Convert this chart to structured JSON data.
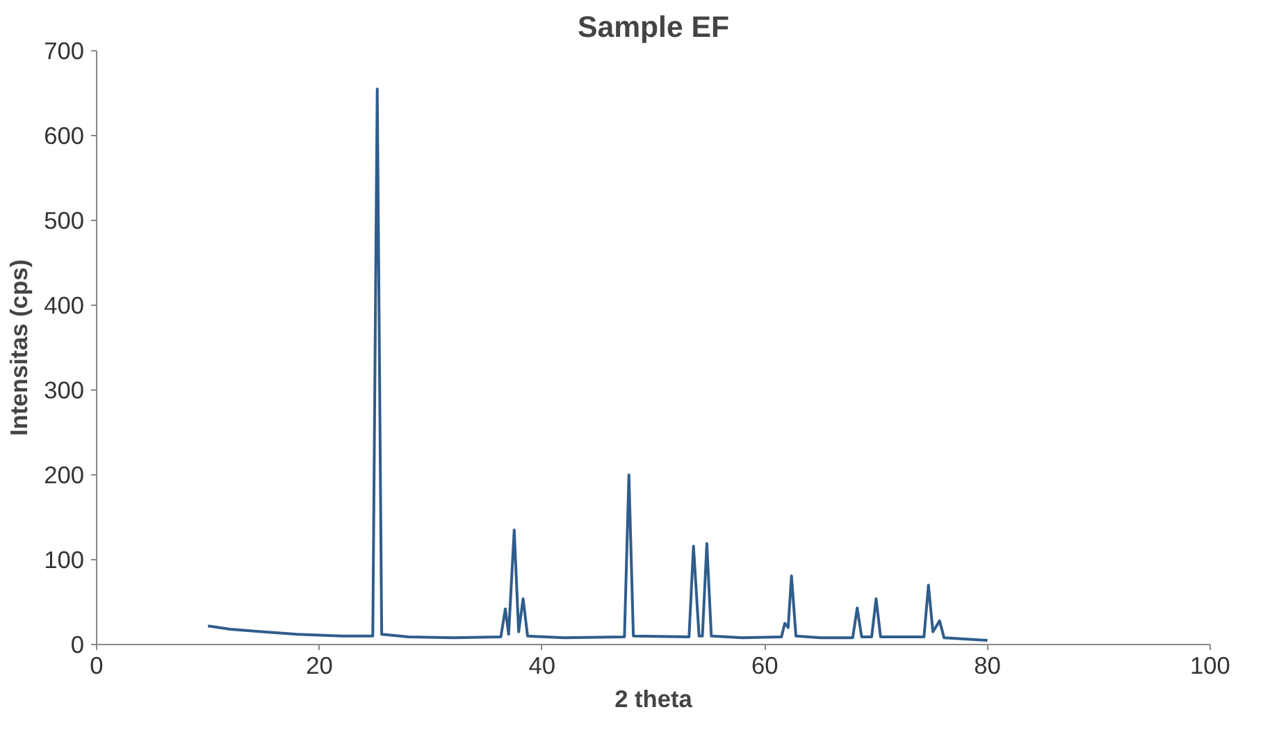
{
  "chart_data": {
    "type": "line",
    "title": "Sample EF",
    "xlabel": "2 theta",
    "ylabel": "Intensitas (cps)",
    "xlim": [
      0,
      100
    ],
    "xticks": [
      0,
      20,
      40,
      60,
      80,
      100
    ],
    "ylim": [
      0,
      700
    ],
    "yticks": [
      0,
      100,
      200,
      300,
      400,
      500,
      600,
      700
    ],
    "grid": false,
    "marker": "none",
    "line_style": "solid",
    "series": [
      {
        "color": "#2f5d8c",
        "x": [
          10,
          12,
          15,
          18,
          22,
          24.8,
          25.2,
          25.6,
          28,
          32,
          36.3,
          36.7,
          37.0,
          37.5,
          37.9,
          38.3,
          38.7,
          42,
          47.4,
          47.8,
          48.2,
          53.2,
          53.6,
          54.1,
          54.4,
          54.8,
          55.2,
          58,
          61.5,
          61.8,
          62.1,
          62.4,
          62.8,
          65,
          67.9,
          68.3,
          68.7,
          69.6,
          70.0,
          70.4,
          74.3,
          74.7,
          75.1,
          75.7,
          76.1,
          80
        ],
        "values": [
          22,
          18,
          15,
          12,
          10,
          10,
          655,
          12,
          9,
          8,
          9,
          42,
          12,
          135,
          15,
          54,
          10,
          8,
          9,
          200,
          10,
          9,
          116,
          10,
          10,
          119,
          10,
          8,
          9,
          25,
          20,
          81,
          10,
          8,
          8,
          43,
          9,
          9,
          54,
          9,
          9,
          70,
          15,
          28,
          8,
          5
        ]
      }
    ]
  }
}
